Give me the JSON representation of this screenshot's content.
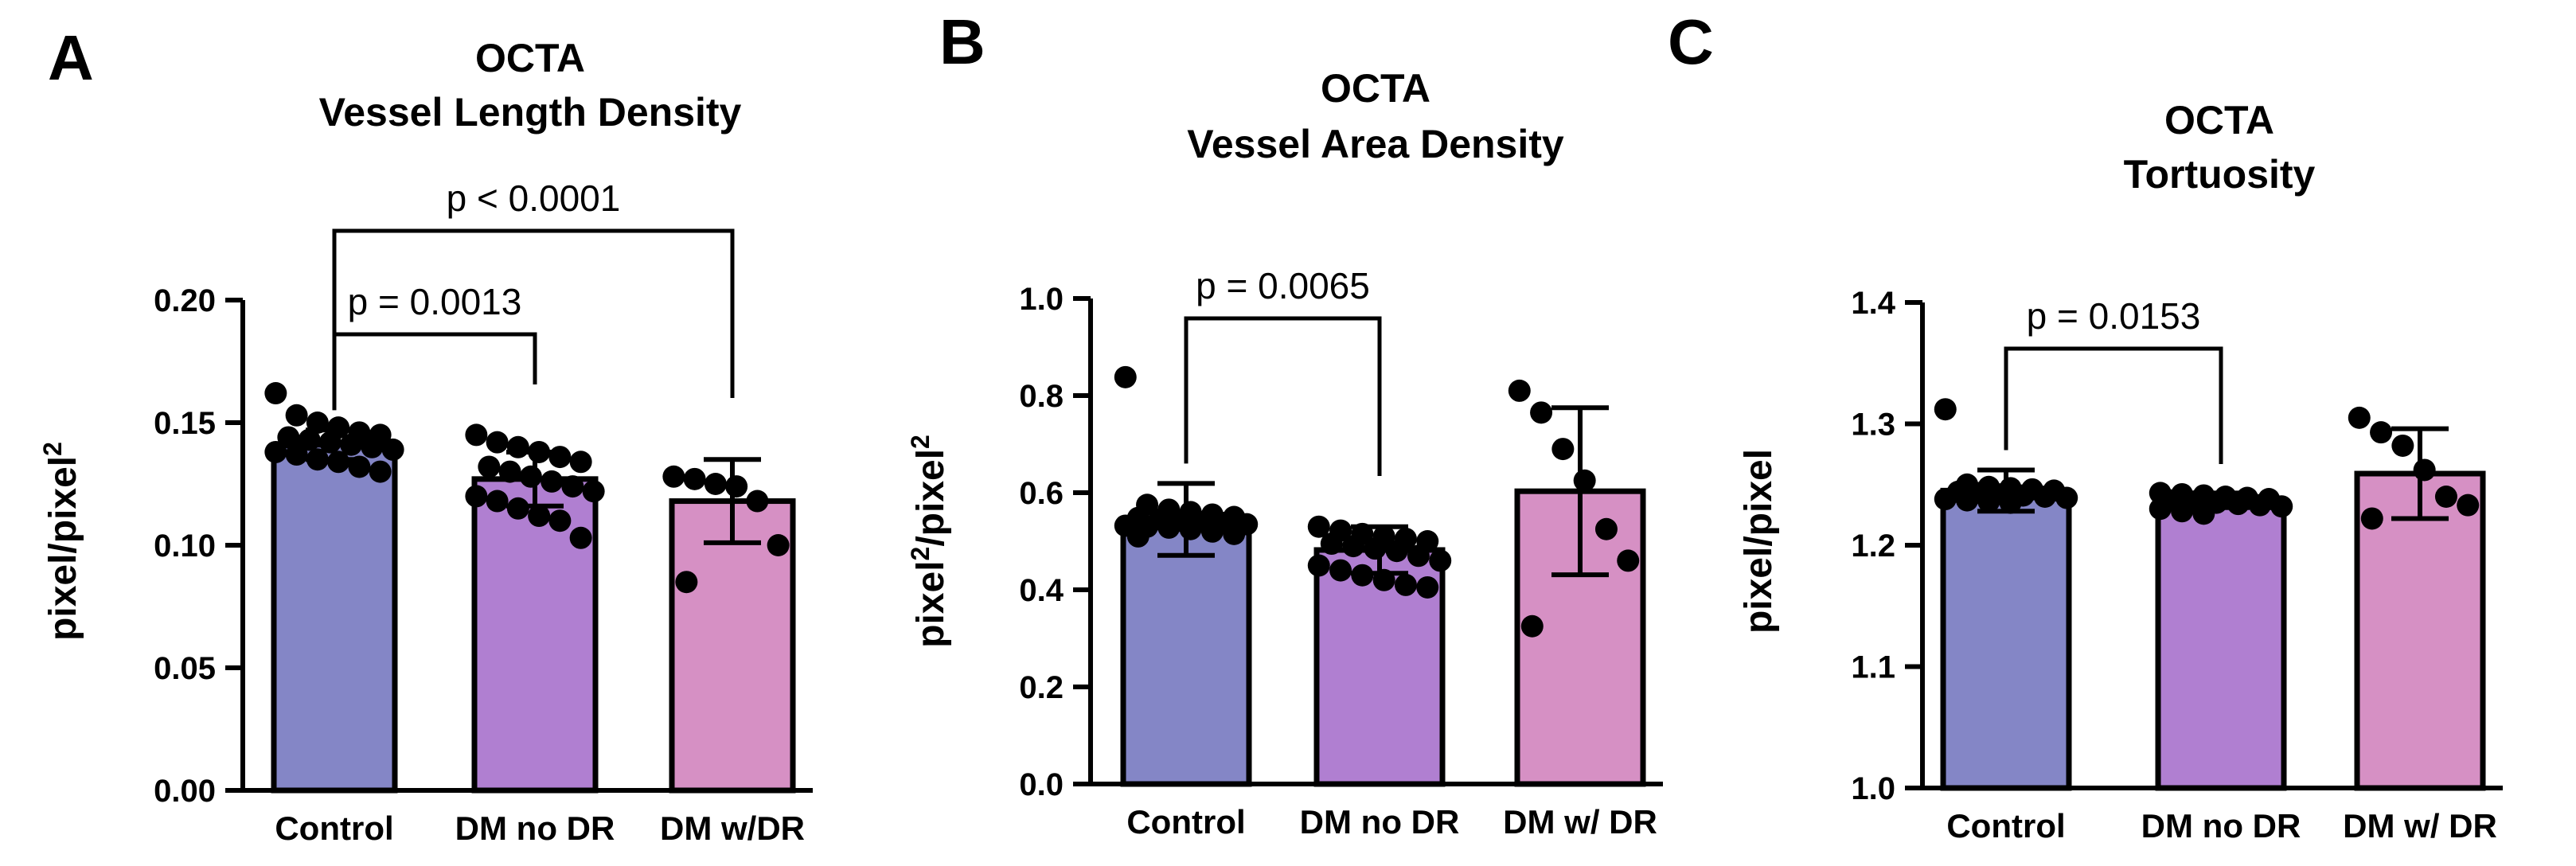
{
  "chart_data": [
    {
      "type": "bar",
      "panel": "A",
      "title_lines": [
        "OCTA",
        "Vessel Length Density"
      ],
      "ylabel": "pixel/pixel",
      "ylabel_superscript": "2",
      "ylabel_unit_main": "pixel/pixel",
      "xlabel": "",
      "ylim": [
        0,
        0.2
      ],
      "yticks": [
        "0.00",
        "0.05",
        "0.10",
        "0.15",
        "0.20"
      ],
      "ytick_values": [
        0,
        0.05,
        0.1,
        0.15,
        0.2
      ],
      "categories": [
        "Control",
        "DM no DR",
        "DM w/DR"
      ],
      "values": [
        0.141,
        0.127,
        0.118
      ],
      "error": [
        0.006,
        0.011,
        0.017
      ],
      "bar_colors": [
        "#8486c6",
        "#b07fd1",
        "#d690c4"
      ],
      "points": [
        [
          0.162,
          0.153,
          0.15,
          0.148,
          0.146,
          0.145,
          0.144,
          0.143,
          0.142,
          0.141,
          0.14,
          0.139,
          0.138,
          0.137,
          0.135,
          0.134,
          0.132,
          0.13
        ],
        [
          0.145,
          0.142,
          0.14,
          0.138,
          0.136,
          0.134,
          0.132,
          0.13,
          0.128,
          0.126,
          0.124,
          0.122,
          0.12,
          0.118,
          0.115,
          0.112,
          0.11,
          0.103
        ],
        [
          0.128,
          0.127,
          0.125,
          0.124,
          0.118,
          0.1,
          0.085
        ]
      ],
      "comparisons": [
        {
          "from": 0,
          "to": 1,
          "label": "p = 0.0013"
        },
        {
          "from": 0,
          "to": 2,
          "label": "p < 0.0001"
        }
      ]
    },
    {
      "type": "bar",
      "panel": "B",
      "title_lines": [
        "OCTA",
        "Vessel Area Density"
      ],
      "ylabel": "pixel2/pixel2",
      "ylabel_unit_main": "pixel",
      "ylabel_superscript": "2",
      "xlabel": "",
      "ylim": [
        0,
        1.0
      ],
      "yticks": [
        "0.0",
        "0.2",
        "0.4",
        "0.6",
        "0.8",
        "1.0"
      ],
      "ytick_values": [
        0,
        0.2,
        0.4,
        0.6,
        0.8,
        1.0
      ],
      "categories": [
        "Control",
        "DM no DR",
        "DM w/ DR"
      ],
      "values": [
        0.545,
        0.482,
        0.603
      ],
      "error": [
        0.074,
        0.048,
        0.172
      ],
      "bar_colors": [
        "#8486c6",
        "#b07fd1",
        "#d690c4"
      ],
      "points": [
        [
          0.838,
          0.575,
          0.565,
          0.56,
          0.555,
          0.55,
          0.548,
          0.545,
          0.542,
          0.54,
          0.538,
          0.535,
          0.532,
          0.53,
          0.528,
          0.525,
          0.52,
          0.515,
          0.51
        ],
        [
          0.53,
          0.522,
          0.515,
          0.51,
          0.505,
          0.5,
          0.495,
          0.49,
          0.485,
          0.48,
          0.47,
          0.46,
          0.45,
          0.44,
          0.43,
          0.42,
          0.41,
          0.405
        ],
        [
          0.81,
          0.765,
          0.69,
          0.625,
          0.525,
          0.46,
          0.325
        ]
      ],
      "comparisons": [
        {
          "from": 0,
          "to": 1,
          "label": "p = 0.0065"
        }
      ]
    },
    {
      "type": "bar",
      "panel": "C",
      "title_lines": [
        "OCTA",
        "Tortuosity"
      ],
      "ylabel": "pixel/pixel",
      "ylabel_unit_main": "pixel/pixel",
      "ylabel_superscript": "",
      "xlabel": "",
      "ylim": [
        1.0,
        1.4
      ],
      "yticks": [
        "1.0",
        "1.1",
        "1.2",
        "1.3",
        "1.4"
      ],
      "ytick_values": [
        1.0,
        1.1,
        1.2,
        1.3,
        1.4
      ],
      "categories": [
        "Control",
        "DM no DR",
        "DM w/ DR"
      ],
      "values": [
        1.245,
        1.237,
        1.259
      ],
      "error": [
        0.017,
        0.006,
        0.037
      ],
      "bar_colors": [
        "#8486c6",
        "#b07fd1",
        "#d690c4"
      ],
      "points": [
        [
          1.312,
          1.25,
          1.248,
          1.247,
          1.246,
          1.245,
          1.244,
          1.243,
          1.242,
          1.241,
          1.24,
          1.239,
          1.238,
          1.237,
          1.236,
          1.235
        ],
        [
          1.243,
          1.242,
          1.241,
          1.24,
          1.239,
          1.238,
          1.237,
          1.236,
          1.235,
          1.234,
          1.233,
          1.232,
          1.23,
          1.228,
          1.226
        ],
        [
          1.305,
          1.293,
          1.282,
          1.262,
          1.24,
          1.233,
          1.222
        ]
      ],
      "comparisons": [
        {
          "from": 0,
          "to": 1,
          "label": "p = 0.0153"
        }
      ]
    }
  ]
}
